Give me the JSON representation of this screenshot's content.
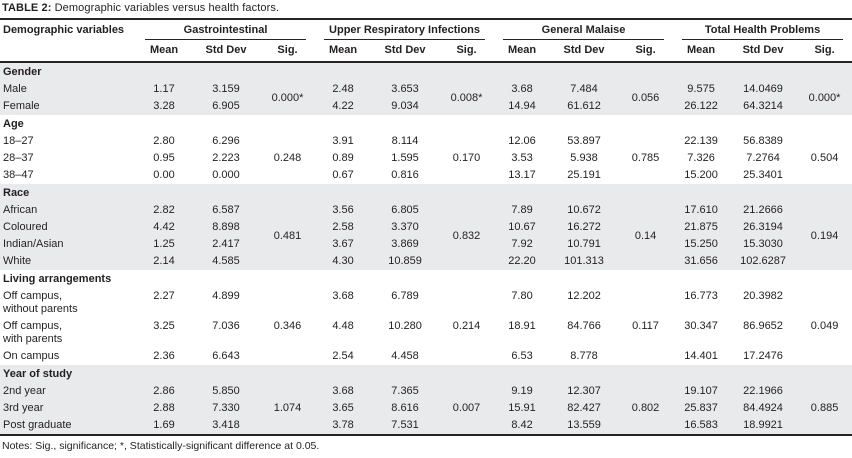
{
  "title": {
    "label": "TABLE 2:",
    "text": " Demographic variables versus health factors."
  },
  "columns": {
    "demographic": "Demographic variables",
    "groups": [
      {
        "name": "Gastrointestinal"
      },
      {
        "name": "Upper Respiratory Infections"
      },
      {
        "name": "General Malaise"
      },
      {
        "name": "Total Health Problems"
      }
    ],
    "sub": [
      "Mean",
      "Std Dev",
      "Sig."
    ]
  },
  "table": {
    "sections": [
      {
        "name": "Gender",
        "shaded": true,
        "sigs": [
          "0.000*",
          "0.008*",
          "0.056",
          "0.000*"
        ],
        "rows": [
          {
            "label": "Male",
            "values": [
              "1.17",
              "3.159",
              "2.48",
              "3.653",
              "3.68",
              "7.484",
              "9.575",
              "14.0469"
            ]
          },
          {
            "label": "Female",
            "values": [
              "3.28",
              "6.905",
              "4.22",
              "9.034",
              "14.94",
              "61.612",
              "26.122",
              "64.3214"
            ]
          }
        ]
      },
      {
        "name": "Age",
        "shaded": false,
        "sigs": [
          "0.248",
          "0.170",
          "0.785",
          "0.504"
        ],
        "rows": [
          {
            "label": "18–27",
            "values": [
              "2.80",
              "6.296",
              "3.91",
              "8.114",
              "12.06",
              "53.897",
              "22.139",
              "56.8389"
            ]
          },
          {
            "label": "28–37",
            "values": [
              "0.95",
              "2.223",
              "0.89",
              "1.595",
              "3.53",
              "5.938",
              "7.326",
              "7.2764"
            ]
          },
          {
            "label": "38–47",
            "values": [
              "0.00",
              "0.000",
              "0.67",
              "0.816",
              "13.17",
              "25.191",
              "15.200",
              "25.3401"
            ]
          }
        ]
      },
      {
        "name": "Race",
        "shaded": true,
        "sigs": [
          "0.481",
          "0.832",
          "0.14",
          "0.194"
        ],
        "rows": [
          {
            "label": "African",
            "values": [
              "2.82",
              "6.587",
              "3.56",
              "6.805",
              "7.89",
              "10.672",
              "17.610",
              "21.2666"
            ]
          },
          {
            "label": "Coloured",
            "values": [
              "4.42",
              "8.898",
              "2.58",
              "3.370",
              "10.67",
              "16.272",
              "21.875",
              "26.3194"
            ]
          },
          {
            "label": "Indian/Asian",
            "values": [
              "1.25",
              "2.417",
              "3.67",
              "3.869",
              "7.92",
              "10.791",
              "15.250",
              "15.3030"
            ]
          },
          {
            "label": "White",
            "values": [
              "2.14",
              "4.585",
              "4.30",
              "10.859",
              "22.20",
              "101.313",
              "31.656",
              "102.6287"
            ]
          }
        ]
      },
      {
        "name": "Living arrangements",
        "shaded": false,
        "sigs": [
          "0.346",
          "0.214",
          "0.117",
          "0.049"
        ],
        "rows": [
          {
            "label": "Off campus,\nwithout parents",
            "values": [
              "2.27",
              "4.899",
              "3.68",
              "6.789",
              "7.80",
              "12.202",
              "16.773",
              "20.3982"
            ]
          },
          {
            "label": "Off campus,\nwith parents",
            "values": [
              "3.25",
              "7.036",
              "4.48",
              "10.280",
              "18.91",
              "84.766",
              "30.347",
              "86.9652"
            ]
          },
          {
            "label": "On campus",
            "values": [
              "2.36",
              "6.643",
              "2.54",
              "4.458",
              "6.53",
              "8.778",
              "14.401",
              "17.2476"
            ]
          }
        ]
      },
      {
        "name": "Year of study",
        "shaded": true,
        "sigs": [
          "1.074",
          "0.007",
          "0.802",
          "0.885"
        ],
        "rows": [
          {
            "label": "2nd year",
            "values": [
              "2.86",
              "5.850",
              "3.68",
              "7.365",
              "9.19",
              "12.307",
              "19.107",
              "22.1966"
            ]
          },
          {
            "label": "3rd year",
            "values": [
              "2.88",
              "7.330",
              "3.65",
              "8.616",
              "15.91",
              "82.427",
              "25.837",
              "84.4924"
            ]
          },
          {
            "label": "Post graduate",
            "values": [
              "1.69",
              "3.418",
              "3.78",
              "7.531",
              "8.42",
              "13.559",
              "16.583",
              "18.9921"
            ]
          }
        ]
      }
    ]
  },
  "notes": "Notes: Sig., significance; *, Statistically-significant difference at 0.05."
}
